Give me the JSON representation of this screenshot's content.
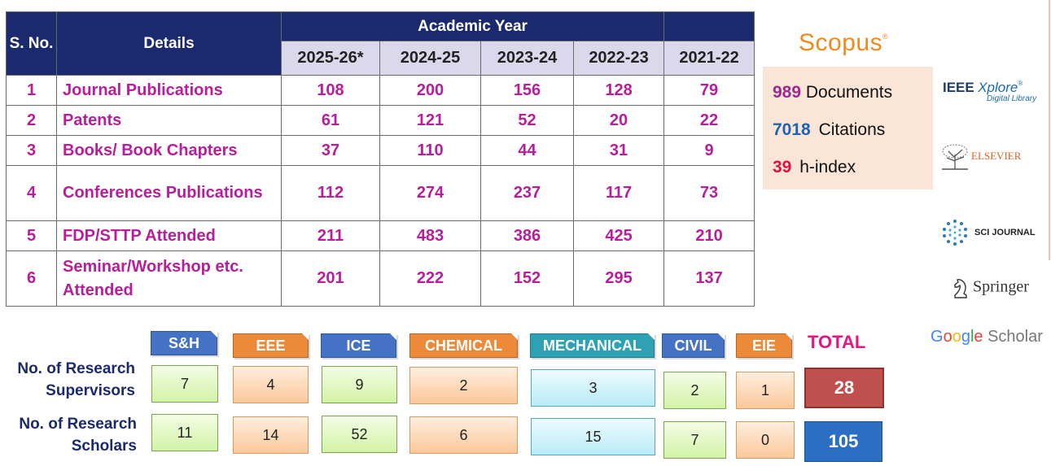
{
  "table": {
    "headers": {
      "sno": "S. No.",
      "details": "Details",
      "academic_year": "Academic Year",
      "years": [
        "2025-26*",
        "2024-25",
        "2023-24",
        "2022-23",
        "2021-22"
      ]
    },
    "rows": [
      {
        "sno": "1",
        "details": "Journal Publications",
        "values": [
          "108",
          "200",
          "156",
          "128",
          "79"
        ]
      },
      {
        "sno": "2",
        "details": "Patents",
        "values": [
          "61",
          "121",
          "52",
          "20",
          "22"
        ]
      },
      {
        "sno": "3",
        "details": "Books/ Book Chapters",
        "values": [
          "37",
          "110",
          "44",
          "31",
          "9"
        ]
      },
      {
        "sno": "4",
        "details": "Conferences Publications",
        "values": [
          "112",
          "274",
          "237",
          "117",
          "73"
        ]
      },
      {
        "sno": "5",
        "details": "FDP/STTP Attended",
        "values": [
          "211",
          "483",
          "386",
          "425",
          "210"
        ]
      },
      {
        "sno": "6",
        "details": "Seminar/Workshop etc. Attended",
        "values": [
          "201",
          "222",
          "152",
          "295",
          "137"
        ]
      }
    ]
  },
  "scopus": {
    "logo": "Scopus",
    "documents_value": "989",
    "documents_label": "Documents",
    "citations_value": "7018",
    "citations_label": "Citations",
    "hindex_value": "39",
    "hindex_label": "h-index"
  },
  "logos": {
    "ieee_a": "IEEE",
    "ieee_b": "Xplore",
    "ieee_c": "Digital Library",
    "elsevier": "ELSEVIER",
    "sci_journal": "SCI JOURNAL",
    "springer": "Springer",
    "google_g": "G",
    "google_o1": "o",
    "google_o2": "o",
    "google_g2": "g",
    "google_l": "l",
    "google_e": "e",
    "scholar": " Scholar"
  },
  "research": {
    "supervisors_label": "No. of Research Supervisors",
    "scholars_label": "No. of Research Scholars",
    "departments": [
      "S&H",
      "EEE",
      "ICE",
      "CHEMICAL",
      "MECHANICAL",
      "CIVIL",
      "EIE"
    ],
    "supervisors": [
      "7",
      "4",
      "9",
      "2",
      "3",
      "2",
      "1"
    ],
    "scholars": [
      "11",
      "14",
      "52",
      "6",
      "15",
      "7",
      "0"
    ],
    "total_label": "TOTAL",
    "total_supervisors": "28",
    "total_scholars": "105"
  },
  "colors": {
    "header_navy": "#1b2a6e",
    "year_header": "#dcd8ec",
    "table_text": "#b81d9c",
    "scopus_orange": "#f08a1c",
    "scopus_bg": "#fbe5d6",
    "dept_blue": "#4472c4",
    "dept_orange": "#ed8a3a",
    "dept_teal": "#2fa1b4",
    "total_magenta": "#e8157e",
    "total_red": "#c0504d",
    "total_blue": "#2c6fc2"
  }
}
